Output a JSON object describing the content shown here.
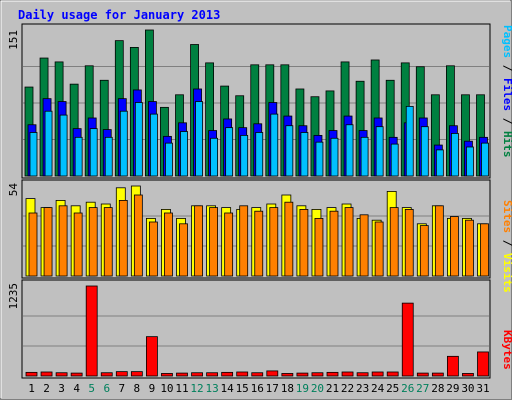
{
  "chart_data": [
    {
      "type": "bar",
      "title": "Daily usage for January 2013",
      "ymax_label": "151",
      "legend": [
        "Pages",
        "Files",
        "Hits"
      ],
      "x": [
        "1",
        "2",
        "3",
        "4",
        "5",
        "6",
        "7",
        "8",
        "9",
        "10",
        "11",
        "12",
        "13",
        "14",
        "15",
        "16",
        "17",
        "18",
        "19",
        "20",
        "21",
        "22",
        "23",
        "24",
        "25",
        "26",
        "27",
        "28",
        "29",
        "30",
        "31"
      ],
      "weekend_days": [
        "5",
        "6",
        "12",
        "13",
        "19",
        "20",
        "26",
        "27"
      ],
      "series": [
        {
          "name": "Hits",
          "values": [
            92,
            122,
            118,
            95,
            114,
            99,
            140,
            133,
            151,
            71,
            84,
            136,
            117,
            93,
            83,
            115,
            115,
            115,
            90,
            82,
            88,
            118,
            98,
            120,
            99,
            117,
            113,
            84,
            114,
            84,
            84
          ]
        },
        {
          "name": "Files",
          "values": [
            53,
            80,
            77,
            49,
            60,
            48,
            80,
            89,
            77,
            41,
            55,
            90,
            47,
            59,
            50,
            54,
            76,
            62,
            52,
            42,
            47,
            62,
            47,
            60,
            40,
            55,
            60,
            32,
            52,
            36,
            40
          ]
        },
        {
          "name": "Pages",
          "values": [
            45,
            67,
            63,
            40,
            49,
            40,
            67,
            76,
            64,
            34,
            46,
            77,
            39,
            50,
            42,
            45,
            64,
            52,
            45,
            35,
            39,
            53,
            40,
            51,
            33,
            72,
            51,
            27,
            44,
            30,
            34
          ]
        }
      ]
    },
    {
      "type": "bar",
      "ymax_label": "54",
      "legend": [
        "Sites",
        "Visits"
      ],
      "series": [
        {
          "name": "Visits",
          "values": [
            43,
            38,
            42,
            39,
            41,
            40,
            49,
            50,
            32,
            37,
            32,
            39,
            39,
            38,
            37,
            38,
            40,
            45,
            39,
            37,
            38,
            40,
            32,
            31,
            47,
            38,
            29,
            39,
            32,
            32,
            29
          ]
        },
        {
          "name": "Sites",
          "values": [
            35,
            38,
            39,
            35,
            38,
            38,
            42,
            45,
            30,
            35,
            29,
            39,
            38,
            35,
            39,
            36,
            38,
            41,
            37,
            32,
            36,
            38,
            34,
            30,
            38,
            37,
            28,
            39,
            33,
            31,
            29
          ]
        }
      ]
    },
    {
      "type": "bar",
      "ymax_label": "1235",
      "legend": [
        "KBytes"
      ],
      "series": [
        {
          "name": "KBytes",
          "values": [
            50,
            55,
            45,
            40,
            1235,
            45,
            60,
            60,
            540,
            35,
            40,
            45,
            45,
            50,
            55,
            45,
            70,
            35,
            40,
            45,
            50,
            55,
            45,
            55,
            55,
            1000,
            40,
            40,
            270,
            35,
            330
          ]
        }
      ]
    }
  ],
  "colors": {
    "hits": "#008040",
    "files": "#0000FF",
    "pages": "#00C0FF",
    "visits": "#FFFF00",
    "sites": "#FF8000",
    "kbytes": "#FF0000",
    "weekday_label": "#000000",
    "weekend_label": "#00805c",
    "title": "#0000FF",
    "panel": "#C0C0C0",
    "frame": "#C0C0C0",
    "background": "#FFFFFF"
  }
}
